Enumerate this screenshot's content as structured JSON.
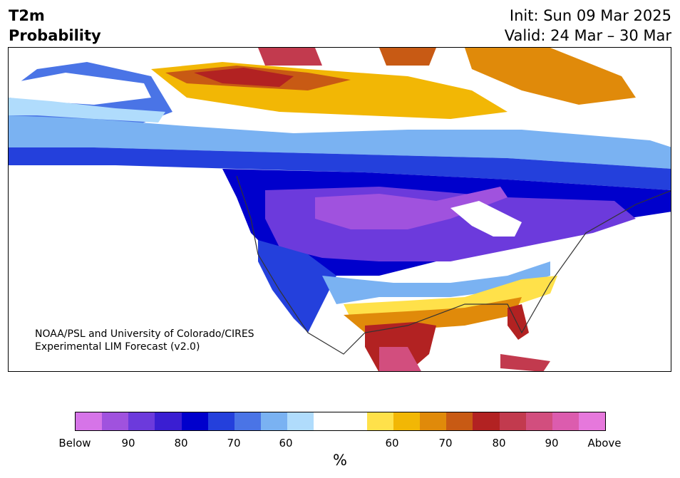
{
  "title": {
    "left_line1": "T2m",
    "left_line2": "Probability",
    "init": "Init: Sun 09 Mar 2025",
    "valid": "Valid: 24 Mar – 30 Mar"
  },
  "credit": {
    "line1": "NOAA/PSL and University of Colorado/CIRES",
    "line2": "Experimental LIM Forecast (v2.0)"
  },
  "colorbar": {
    "colors": [
      "#d674e8",
      "#a052de",
      "#6c3adc",
      "#3a1ed2",
      "#0000cc",
      "#2440dc",
      "#4a74e6",
      "#7ab2f2",
      "#b0dcfc",
      "#ffffff",
      "#ffffff",
      "#ffe14a",
      "#f2b705",
      "#e08a0a",
      "#c85a14",
      "#b22222",
      "#c23a4e",
      "#d24e7e",
      "#dc5cae",
      "#e678dc"
    ],
    "tick_labels": [
      "Below",
      "90",
      "80",
      "70",
      "60",
      "60",
      "70",
      "80",
      "90",
      "Above"
    ],
    "unit": "%"
  },
  "map": {
    "colors": {
      "ocean": "#ffffff",
      "deep_below": "#0000cc",
      "below_mid": "#3a1ed2",
      "below_strong": "#6c3adc",
      "below_extreme": "#a052de",
      "above_weak": "#ffe14a",
      "above_mid": "#e08a0a",
      "above_strong": "#b22222",
      "above_extreme": "#d24e7e"
    }
  }
}
